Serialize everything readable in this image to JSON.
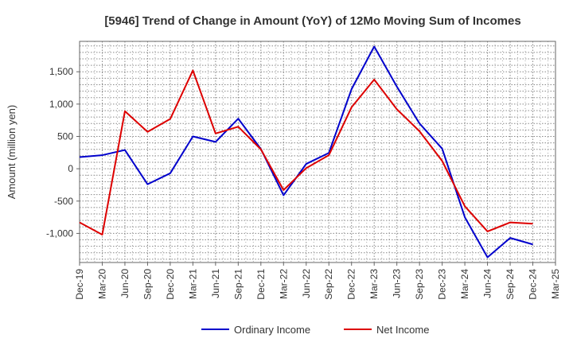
{
  "chart_data": {
    "type": "line",
    "title": "[5946]  Trend of Change in Amount (YoY) of 12Mo Moving Sum of Incomes",
    "xlabel": "",
    "ylabel": "Amount (million yen)",
    "ylim": [
      -1450,
      1970
    ],
    "yticks": [
      -1000,
      -500,
      0,
      500,
      1000,
      1500
    ],
    "ytick_labels": [
      "-1,000",
      "-500",
      "0",
      "500",
      "1,000",
      "1,500"
    ],
    "categories": [
      "Dec-19",
      "Mar-20",
      "Jun-20",
      "Sep-20",
      "Dec-20",
      "Mar-21",
      "Jun-21",
      "Sep-21",
      "Dec-21",
      "Mar-22",
      "Jun-22",
      "Sep-22",
      "Dec-22",
      "Mar-23",
      "Jun-23",
      "Sep-23",
      "Dec-23",
      "Mar-24",
      "Jun-24",
      "Sep-24",
      "Dec-24",
      "Mar-25"
    ],
    "grid": true,
    "legend_position": "bottom",
    "series": [
      {
        "name": "Ordinary Income",
        "color": "#0000cc",
        "values": [
          180,
          210,
          290,
          -240,
          -70,
          500,
          415,
          775,
          305,
          -410,
          75,
          245,
          1230,
          1890,
          1270,
          700,
          310,
          -750,
          -1370,
          -1070,
          -1170,
          null
        ]
      },
      {
        "name": "Net Income",
        "color": "#dd0000",
        "values": [
          -830,
          -1020,
          890,
          570,
          770,
          1520,
          545,
          650,
          300,
          -330,
          10,
          210,
          950,
          1380,
          920,
          580,
          120,
          -580,
          -970,
          -830,
          -850,
          null
        ]
      }
    ]
  }
}
